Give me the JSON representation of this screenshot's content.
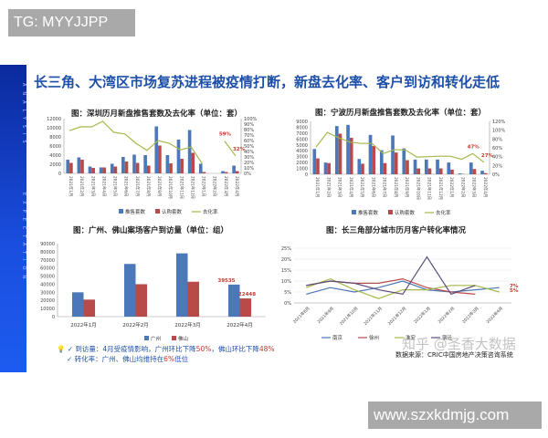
{
  "watermarks": {
    "top": "TG: MYYJJPP",
    "bottom": "www.szxkdmjg.com",
    "overlay": "知乎 @圣香大数据"
  },
  "sidebar": {
    "text1": "ANALYSIS",
    "text2": "EXPECTATION"
  },
  "title": "长三角、大湾区市场复苏进程被疫情打断，新盘去化率、客户到访和转化走低",
  "colors": {
    "blue": "#4a78b8",
    "red": "#b84a4a",
    "green": "#a5b84a",
    "title": "#1d4fa8"
  },
  "notes": {
    "line1_label": "到访量：",
    "line1_text": "4月受疫情影响，广州环比下降",
    "line1_v1": "50%",
    "line1_mid": "，佛山环比下降",
    "line1_v2": "48%",
    "line2_label": "转化率：",
    "line2_text": "广州、佛山均维持在",
    "line2_v": "6%",
    "line2_end": "低位"
  },
  "source": "数据来源：CRIC中国房地产决策咨询系统",
  "chart_data": [
    {
      "type": "bar+line",
      "title": "图：深圳历月新盘推售套数及去化率（单位：套）",
      "categories": [
        "2021年1月",
        "2021年2月",
        "2021年3月",
        "2021年4月",
        "2021年5月",
        "2021年6月",
        "2021年7月",
        "2021年8月",
        "2021年9月",
        "2021年10月",
        "2021年11月",
        "2021年12月",
        "2022年1月",
        "2022年2月",
        "2022年3月",
        "2022年4月"
      ],
      "series": [
        {
          "name": "推售套数",
          "values": [
            3000,
            3500,
            1500,
            1300,
            2100,
            3600,
            4100,
            4000,
            10300,
            4000,
            7400,
            9500,
            2100,
            0,
            500,
            1700
          ]
        },
        {
          "name": "认购套数",
          "values": [
            2300,
            3000,
            1200,
            1300,
            1500,
            2600,
            2300,
            1700,
            6100,
            2200,
            3200,
            4500,
            300,
            0,
            300,
            500
          ]
        },
        {
          "name": "去化率",
          "axis": "right",
          "values": [
            78,
            85,
            85,
            95,
            75,
            72,
            55,
            42,
            60,
            55,
            43,
            48,
            17,
            null,
            59,
            32
          ]
        }
      ],
      "ylim": [
        0,
        12000
      ],
      "yticks": [
        0,
        2000,
        4000,
        6000,
        8000,
        10000,
        12000
      ],
      "y2lim": [
        0,
        100
      ],
      "y2ticks": [
        0,
        10,
        20,
        30,
        40,
        50,
        60,
        70,
        80,
        90,
        100
      ],
      "annotations": [
        "59%",
        "32%"
      ],
      "legend": "bottom"
    },
    {
      "type": "bar+line",
      "title": "图：宁波历月新盘推售套数及去化率（单位：套）",
      "categories": [
        "2021年1月",
        "2021年2月",
        "2021年3月",
        "2021年4月",
        "2021年5月",
        "2021年6月",
        "2021年7月",
        "2021年8月",
        "2021年9月",
        "2021年10月",
        "2021年11月",
        "2021年12月",
        "2022年1月",
        "2022年2月",
        "2022年3月",
        "2022年4月"
      ],
      "series": [
        {
          "name": "推售套数",
          "values": [
            4300,
            2000,
            8200,
            8400,
            2600,
            6700,
            4100,
            6600,
            4400,
            2500,
            2500,
            2500,
            2000,
            150,
            2000,
            600
          ]
        },
        {
          "name": "认购套数",
          "values": [
            2700,
            1900,
            6900,
            6200,
            1800,
            4800,
            1900,
            3700,
            2400,
            1000,
            1000,
            1000,
            800,
            50,
            900,
            200
          ]
        },
        {
          "name": "去化率",
          "axis": "right",
          "values": [
            62,
            95,
            83,
            73,
            70,
            70,
            47,
            56,
            55,
            39,
            40,
            41,
            41,
            34,
            47,
            27
          ]
        }
      ],
      "ylim": [
        0,
        9000
      ],
      "yticks": [
        0,
        1000,
        2000,
        3000,
        4000,
        5000,
        6000,
        7000,
        8000,
        9000
      ],
      "y2lim": [
        0,
        120
      ],
      "y2ticks": [
        0,
        20,
        40,
        60,
        80,
        100,
        120
      ],
      "annotations": [
        "47%",
        "27%"
      ],
      "legend": "bottom"
    },
    {
      "type": "bar",
      "title": "图：广州、佛山案场客户到访量（单位：组）",
      "categories": [
        "2022年1月",
        "2022年2月",
        "2022年3月",
        "2022年4月"
      ],
      "series": [
        {
          "name": "广州",
          "values": [
            30000,
            65000,
            78000,
            39535
          ]
        },
        {
          "name": "佛山",
          "values": [
            21000,
            40000,
            43000,
            22448
          ]
        }
      ],
      "ylim": [
        0,
        90000
      ],
      "yticks": [
        0,
        10000,
        20000,
        30000,
        40000,
        50000,
        60000,
        70000,
        80000,
        90000
      ],
      "annotations": [
        "39535",
        "22448"
      ],
      "legend": "bottom"
    },
    {
      "type": "line",
      "title": "图：长三角部分城市历月客户转化率情况",
      "categories": [
        "2021年8月",
        "2021年9月",
        "2021年10月",
        "2021年11月",
        "2021年12月",
        "2022年1月",
        "2022年2月",
        "2022年3月",
        "2022年4月"
      ],
      "series": [
        {
          "name": "南京",
          "values": [
            4,
            7,
            5,
            7,
            10,
            6,
            5,
            6,
            7
          ]
        },
        {
          "name": "徐州",
          "values": [
            8,
            10,
            9,
            9,
            11,
            7,
            5,
            4,
            null
          ]
        },
        {
          "name": "淮安",
          "values": [
            7,
            11,
            6,
            2,
            6,
            6,
            8,
            8,
            5
          ]
        },
        {
          "name": "宿迁",
          "values": [
            8,
            10,
            9,
            6,
            4,
            21,
            4,
            8,
            null
          ]
        }
      ],
      "ylim": [
        0,
        25
      ],
      "yticks": [
        0,
        5,
        10,
        15,
        20,
        25
      ],
      "annotations": [
        "7%",
        "5%"
      ],
      "legend": "bottom"
    }
  ]
}
